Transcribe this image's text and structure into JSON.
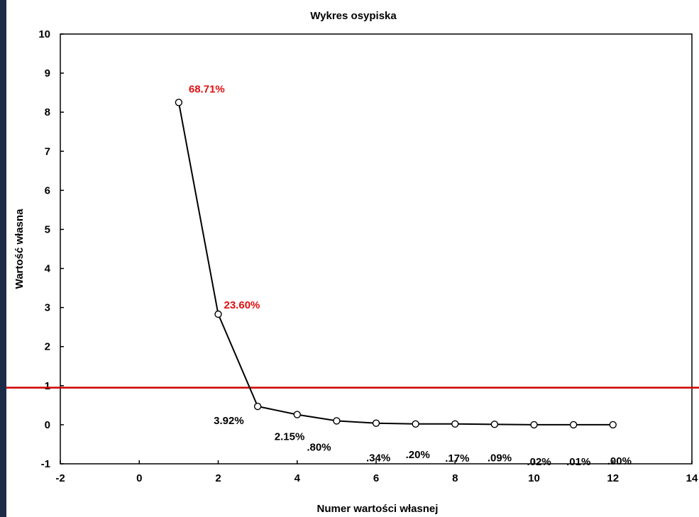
{
  "chart_data": {
    "type": "line",
    "title": "Wykres osypiska",
    "xlabel": "Numer wartości własnej",
    "ylabel": "Wartość własna",
    "xlim": [
      -2,
      14
    ],
    "ylim": [
      -1,
      10
    ],
    "x_ticks": [
      "-2",
      "0",
      "2",
      "4",
      "6",
      "8",
      "10",
      "12",
      "14"
    ],
    "y_ticks": [
      "-1",
      "0",
      "1",
      "2",
      "3",
      "4",
      "5",
      "6",
      "7",
      "8",
      "9",
      "10"
    ],
    "grid": false,
    "series": [
      {
        "x": [
          1,
          2,
          3,
          4,
          5,
          6,
          7,
          8,
          9,
          10,
          11,
          12
        ],
        "y": [
          8.25,
          2.83,
          0.47,
          0.26,
          0.1,
          0.04,
          0.02,
          0.02,
          0.01,
          0.0,
          0.0,
          0.0
        ],
        "color": "#000000",
        "marker": "open-circle"
      }
    ],
    "point_labels": [
      "68.71%",
      "23.60%",
      "3.92%",
      "2.15%",
      ".80%",
      ".34%",
      ".20%",
      ".17%",
      ".09%",
      ".02%",
      ".01%",
      ".00%"
    ],
    "reference_line": {
      "y": 0.95,
      "color": "#cc0000"
    },
    "highlight_color": "#e01010"
  }
}
